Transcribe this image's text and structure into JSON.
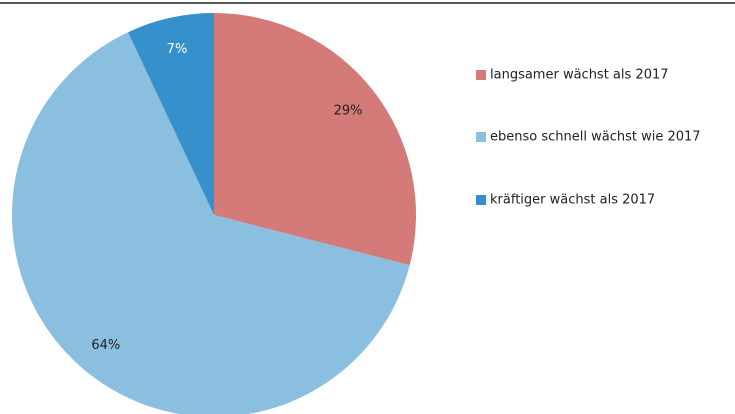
{
  "chart_data": {
    "type": "pie",
    "categories": [
      "langsamer wächst als 2017",
      "ebenso schnell wächst wie 2017",
      "kräftiger wächst als 2017"
    ],
    "values": [
      29,
      64,
      7
    ],
    "value_labels": [
      "29%",
      "64%",
      "7%"
    ],
    "colors": [
      "#d47a78",
      "#8bbfdf",
      "#3590cb"
    ],
    "legend": "right"
  }
}
